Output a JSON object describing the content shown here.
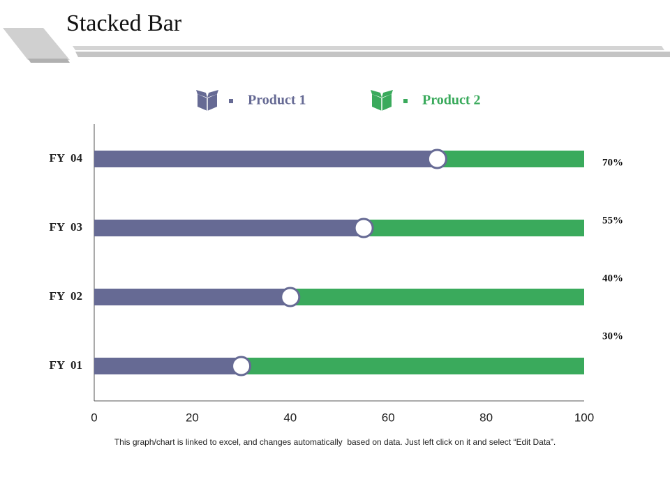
{
  "chart_data": {
    "type": "stacked_hbar",
    "title": "Stacked Bar",
    "categories": [
      "FY  01",
      "FY  02",
      "FY  03",
      "FY  04"
    ],
    "series": [
      {
        "name": "Product 1",
        "color": "#666a94",
        "values": [
          30,
          40,
          55,
          70
        ],
        "value_labels": [
          "30%",
          "40%",
          "55%",
          "70%"
        ]
      },
      {
        "name": "Product 2",
        "color": "#3aaa5c",
        "values": [
          70,
          60,
          45,
          30
        ]
      }
    ],
    "xlim": [
      0,
      100
    ],
    "xticks": [
      0,
      20,
      40,
      60,
      80,
      100
    ],
    "footnote": "This graph/chart is linked to excel, and changes automatically  based on data. Just left click on it and select “Edit Data”."
  }
}
